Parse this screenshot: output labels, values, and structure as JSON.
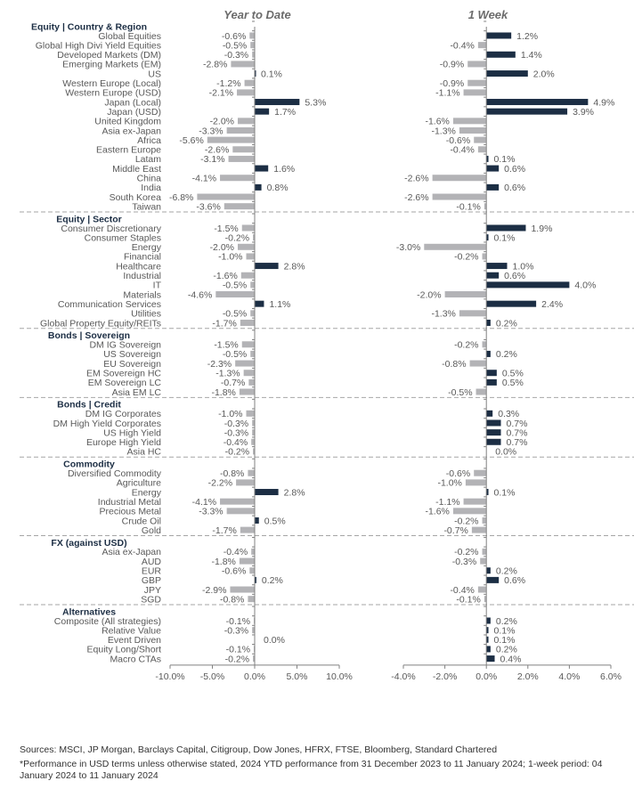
{
  "chart_data": {
    "type": "bar",
    "orientation": "horizontal",
    "panels": [
      {
        "title": "Year to Date",
        "series_key": "ytd",
        "xlim": [
          -10,
          10
        ],
        "ticks": [
          -10,
          -5,
          0,
          5,
          10
        ],
        "tick_labels": [
          "-10.0%",
          "-5.0%",
          "0.0%",
          "5.0%",
          "10.0%"
        ]
      },
      {
        "title": "1 Week",
        "series_key": "week",
        "xlim": [
          -4,
          6
        ],
        "ticks": [
          -4,
          -2,
          0,
          2,
          4,
          6
        ],
        "tick_labels": [
          "-4.0%",
          "-2.0%",
          "0.0%",
          "2.0%",
          "4.0%",
          "6.0%"
        ]
      }
    ],
    "colors": {
      "positive": "#1c2e44",
      "negative": "#b3b3b6",
      "header": "#1c2e44",
      "label": "#595959",
      "axis": "#808080",
      "divider": "#a6a6a6"
    },
    "groups": [
      {
        "title": "Equity | Country & Region",
        "items": [
          {
            "label": "Global Equities",
            "ytd": -0.6,
            "week": 1.2
          },
          {
            "label": "Global High Divi Yield Equities",
            "ytd": -0.5,
            "week": -0.4
          },
          {
            "label": "Developed Markets (DM)",
            "ytd": -0.3,
            "week": 1.4
          },
          {
            "label": "Emerging Markets (EM)",
            "ytd": -2.8,
            "week": -0.9
          },
          {
            "label": "US",
            "ytd": 0.1,
            "week": 2.0
          },
          {
            "label": "Western Europe (Local)",
            "ytd": -1.2,
            "week": -0.9
          },
          {
            "label": "Western Europe (USD)",
            "ytd": -2.1,
            "week": -1.1
          },
          {
            "label": "Japan (Local)",
            "ytd": 5.3,
            "week": 4.9
          },
          {
            "label": "Japan (USD)",
            "ytd": 1.7,
            "week": 3.9
          },
          {
            "label": "United Kingdom",
            "ytd": -2.0,
            "week": -1.6
          },
          {
            "label": "Asia ex-Japan",
            "ytd": -3.3,
            "week": -1.3
          },
          {
            "label": "Africa",
            "ytd": -5.6,
            "week": -0.6
          },
          {
            "label": "Eastern Europe",
            "ytd": -2.6,
            "week": -0.4
          },
          {
            "label": "Latam",
            "ytd": -3.1,
            "week": 0.1
          },
          {
            "label": "Middle East",
            "ytd": 1.6,
            "week": 0.6
          },
          {
            "label": "China",
            "ytd": -4.1,
            "week": -2.6
          },
          {
            "label": "India",
            "ytd": 0.8,
            "week": 0.6
          },
          {
            "label": "South Korea",
            "ytd": -6.8,
            "week": -2.6
          },
          {
            "label": "Taiwan",
            "ytd": -3.6,
            "week": -0.1
          }
        ]
      },
      {
        "title": "Equity | Sector",
        "items": [
          {
            "label": "Consumer Discretionary",
            "ytd": -1.5,
            "week": 1.9
          },
          {
            "label": "Consumer Staples",
            "ytd": -0.2,
            "week": 0.1
          },
          {
            "label": "Energy",
            "ytd": -2.0,
            "week": -3.0
          },
          {
            "label": "Financial",
            "ytd": -1.0,
            "week": -0.2
          },
          {
            "label": "Healthcare",
            "ytd": 2.8,
            "week": 1.0
          },
          {
            "label": "Industrial",
            "ytd": -1.6,
            "week": 0.6
          },
          {
            "label": "IT",
            "ytd": -0.5,
            "week": 4.0
          },
          {
            "label": "Materials",
            "ytd": -4.6,
            "week": -2.0
          },
          {
            "label": "Communication Services",
            "ytd": 1.1,
            "week": 2.4
          },
          {
            "label": "Utilities",
            "ytd": -0.5,
            "week": -1.3
          },
          {
            "label": "Global Property Equity/REITs",
            "ytd": -1.7,
            "week": 0.2
          }
        ]
      },
      {
        "title": "Bonds | Sovereign",
        "items": [
          {
            "label": "DM IG Sovereign",
            "ytd": -1.5,
            "week": -0.2
          },
          {
            "label": "US Sovereign",
            "ytd": -0.5,
            "week": 0.2
          },
          {
            "label": "EU Sovereign",
            "ytd": -2.3,
            "week": -0.8
          },
          {
            "label": "EM Sovereign HC",
            "ytd": -1.3,
            "week": 0.5
          },
          {
            "label": "EM Sovereign LC",
            "ytd": -0.7,
            "week": 0.5
          },
          {
            "label": "Asia EM LC",
            "ytd": -1.8,
            "week": -0.5
          }
        ]
      },
      {
        "title": "Bonds | Credit",
        "items": [
          {
            "label": "DM IG Corporates",
            "ytd": -1.0,
            "week": 0.3
          },
          {
            "label": "DM High Yield Corporates",
            "ytd": -0.3,
            "week": 0.7
          },
          {
            "label": "US High Yield",
            "ytd": -0.3,
            "week": 0.7
          },
          {
            "label": "Europe High Yield",
            "ytd": -0.4,
            "week": 0.7
          },
          {
            "label": "Asia HC",
            "ytd": -0.2,
            "week": 0.0
          }
        ]
      },
      {
        "title": "Commodity",
        "items": [
          {
            "label": "Diversified Commodity",
            "ytd": -0.8,
            "week": -0.6
          },
          {
            "label": "Agriculture",
            "ytd": -2.2,
            "week": -1.0
          },
          {
            "label": "Energy",
            "ytd": 2.8,
            "week": 0.1
          },
          {
            "label": "Industrial Metal",
            "ytd": -4.1,
            "week": -1.1
          },
          {
            "label": "Precious Metal",
            "ytd": -3.3,
            "week": -1.6
          },
          {
            "label": "Crude Oil",
            "ytd": 0.5,
            "week": -0.2
          },
          {
            "label": "Gold",
            "ytd": -1.7,
            "week": -0.7
          }
        ]
      },
      {
        "title": "FX (against USD)",
        "items": [
          {
            "label": "Asia ex-Japan",
            "ytd": -0.4,
            "week": -0.2
          },
          {
            "label": "AUD",
            "ytd": -1.8,
            "week": -0.3
          },
          {
            "label": "EUR",
            "ytd": -0.6,
            "week": 0.2
          },
          {
            "label": "GBP",
            "ytd": 0.2,
            "week": 0.6
          },
          {
            "label": "JPY",
            "ytd": -2.9,
            "week": -0.4
          },
          {
            "label": "SGD",
            "ytd": -0.8,
            "week": -0.1
          }
        ]
      },
      {
        "title": "Alternatives",
        "items": [
          {
            "label": "Composite (All strategies)",
            "ytd": -0.1,
            "week": 0.2
          },
          {
            "label": "Relative Value",
            "ytd": -0.3,
            "week": 0.1
          },
          {
            "label": "Event Driven",
            "ytd": 0.0,
            "week": 0.1
          },
          {
            "label": "Equity Long/Short",
            "ytd": -0.1,
            "week": 0.2
          },
          {
            "label": "Macro CTAs",
            "ytd": -0.2,
            "week": 0.4
          }
        ]
      }
    ]
  },
  "footer": {
    "sources": "Sources: MSCI, JP Morgan, Barclays Capital, Citigroup, Dow Jones, HFRX, FTSE, Bloomberg, Standard Chartered",
    "note": "*Performance in USD terms unless otherwise stated, 2024 YTD performance from 31 December 2023 to 11 January 2024; 1-week period: 04 January 2024 to 11 January 2024"
  }
}
